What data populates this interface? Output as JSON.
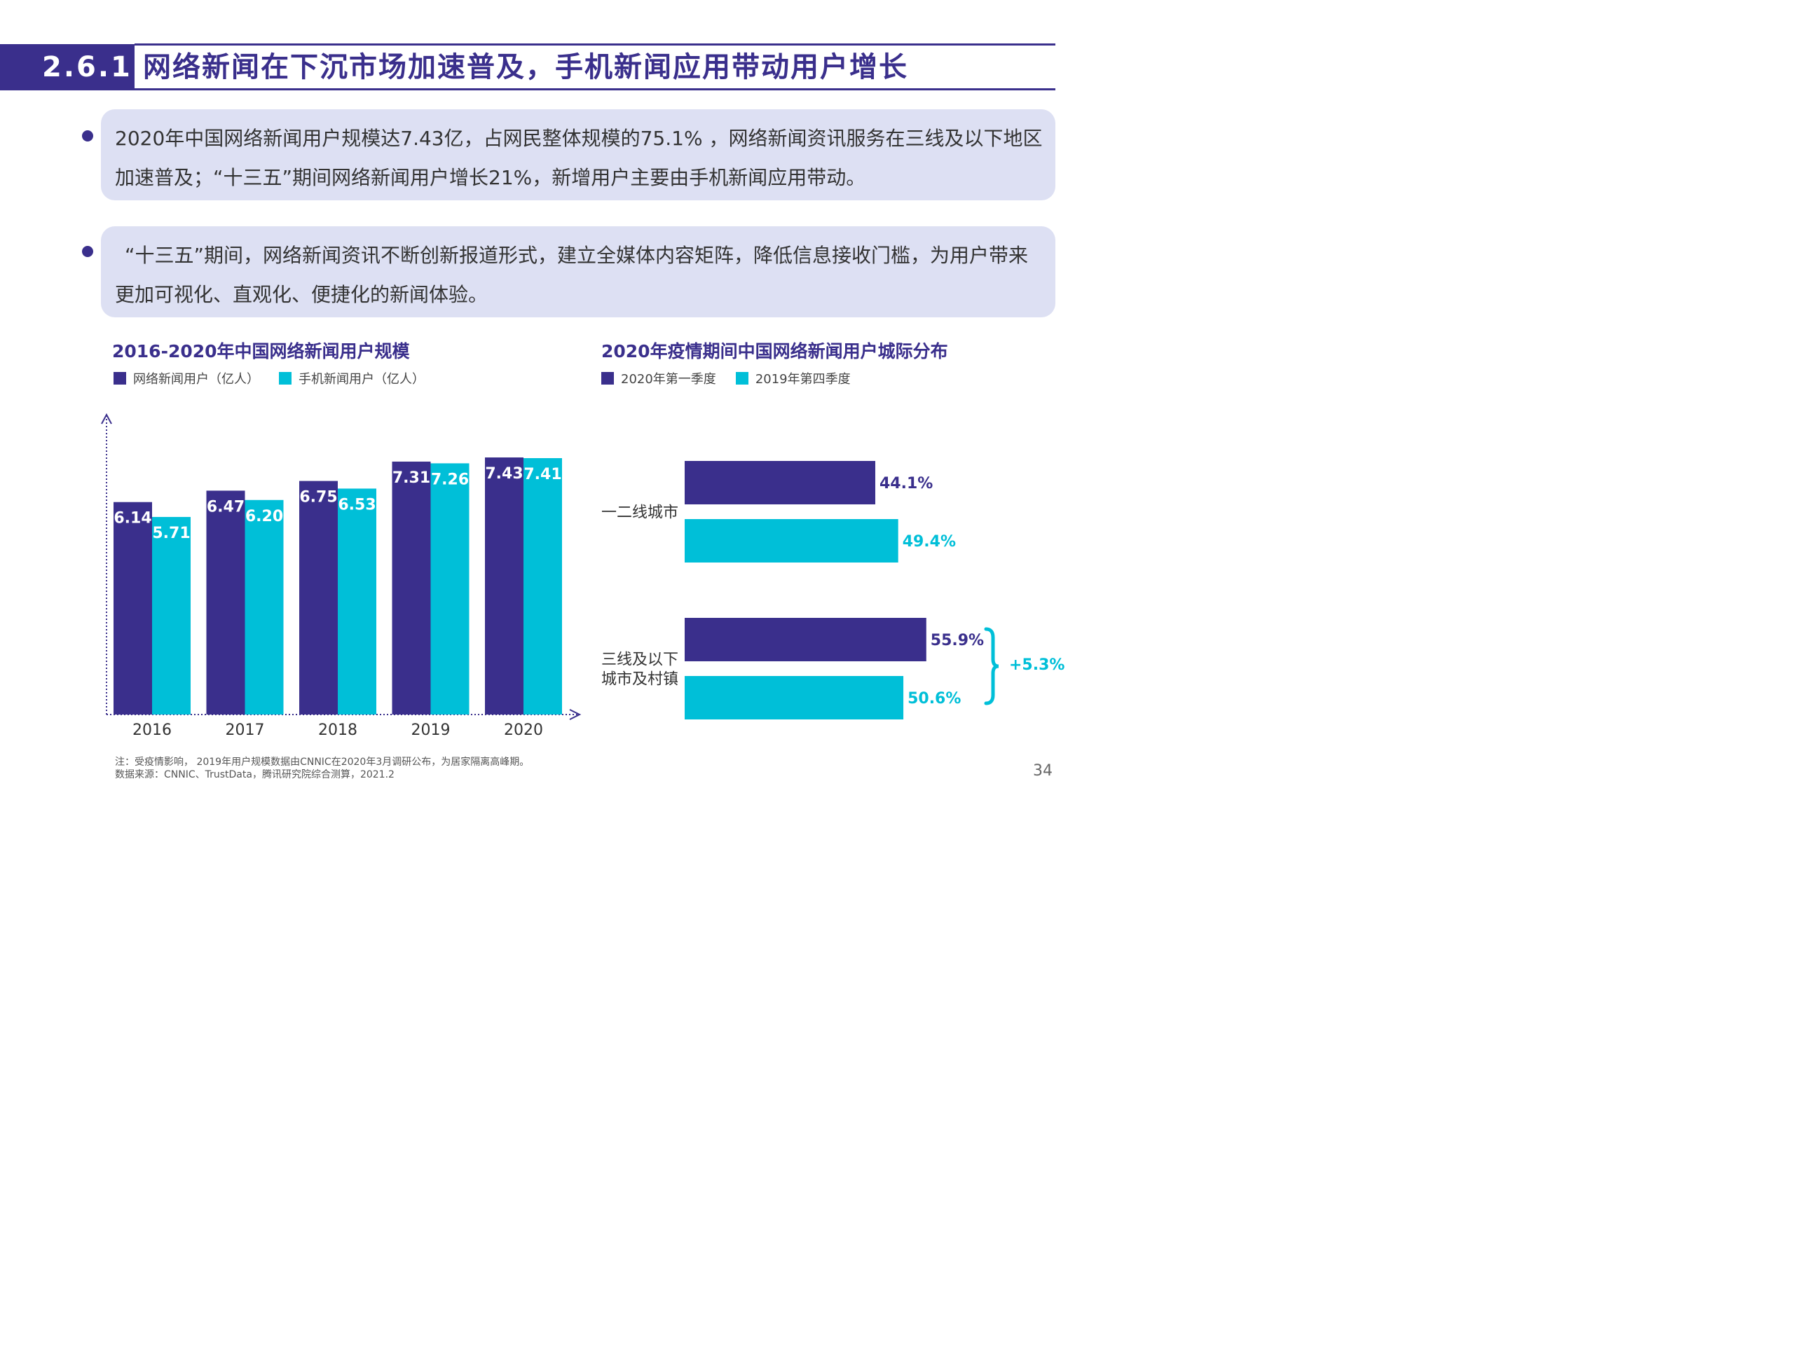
{
  "header": {
    "section_number": "2.6.1",
    "title": "网络新闻在下沉市场加速普及，手机新闻应用带动用户增长"
  },
  "bullets": [
    {
      "text": "2020年中国网络新闻用户规模达7.43亿，占网民整体规模的75.1% ，网络新闻资讯服务在三线及以下地区加速普及；“十三五”期间网络新闻用户增长21%，新增用户主要由手机新闻应用带动。"
    },
    {
      "text": "“十三五”期间，网络新闻资讯不断创新报道形式，建立全媒体内容矩阵，降低信息接收门槛，为用户带来更加可视化、直观化、便捷化的新闻体验。"
    }
  ],
  "colors": {
    "primary": "#3a2f8c",
    "accent": "#00bfd8",
    "bullet_bg": "#dde0f3"
  },
  "chart_data": [
    {
      "type": "bar",
      "title": "2016-2020年中国网络新闻用户规模",
      "categories": [
        "2016",
        "2017",
        "2018",
        "2019",
        "2020"
      ],
      "series": [
        {
          "name": "网络新闻用户（亿人）",
          "values": [
            6.14,
            6.47,
            6.75,
            7.31,
            7.43
          ],
          "labels": [
            "6.14",
            "6.47",
            "6.75",
            "7.31",
            "7.43"
          ],
          "color": "#3a2f8c"
        },
        {
          "name": "手机新闻用户（亿人）",
          "values": [
            5.71,
            6.2,
            6.53,
            7.26,
            7.41
          ],
          "labels": [
            "5.71",
            "6.20",
            "6.53",
            "7.26",
            "7.41"
          ],
          "color": "#00bfd8"
        }
      ],
      "ylim": [
        0,
        8
      ],
      "grid": false,
      "legend": "top-left"
    },
    {
      "type": "bar",
      "orientation": "horizontal",
      "title": "2020年疫情期间中国网络新闻用户城际分布",
      "categories": [
        "一二线城市",
        "三线及以下城市及村镇"
      ],
      "category_lines": [
        [
          "一二线城市"
        ],
        [
          "三线及以下",
          "城市及村镇"
        ]
      ],
      "series": [
        {
          "name": "2020年第一季度",
          "values": [
            44.1,
            55.9
          ],
          "labels": [
            "44.1%",
            "55.9%"
          ],
          "color": "#3a2f8c"
        },
        {
          "name": "2019年第四季度",
          "values": [
            49.4,
            50.6
          ],
          "labels": [
            "49.4%",
            "50.6%"
          ],
          "color": "#00bfd8"
        }
      ],
      "annotation": "+5.3%",
      "xlim": [
        0,
        60
      ],
      "grid": false,
      "legend": "top-left"
    }
  ],
  "footer": {
    "note": "注：受疫情影响， 2019年用户规模数据由CNNIC在2020年3月调研公布，为居家隔离高峰期。",
    "source": "数据来源：CNNIC、TrustData，腾讯研究院综合测算，2021.2",
    "page_number": "34"
  }
}
